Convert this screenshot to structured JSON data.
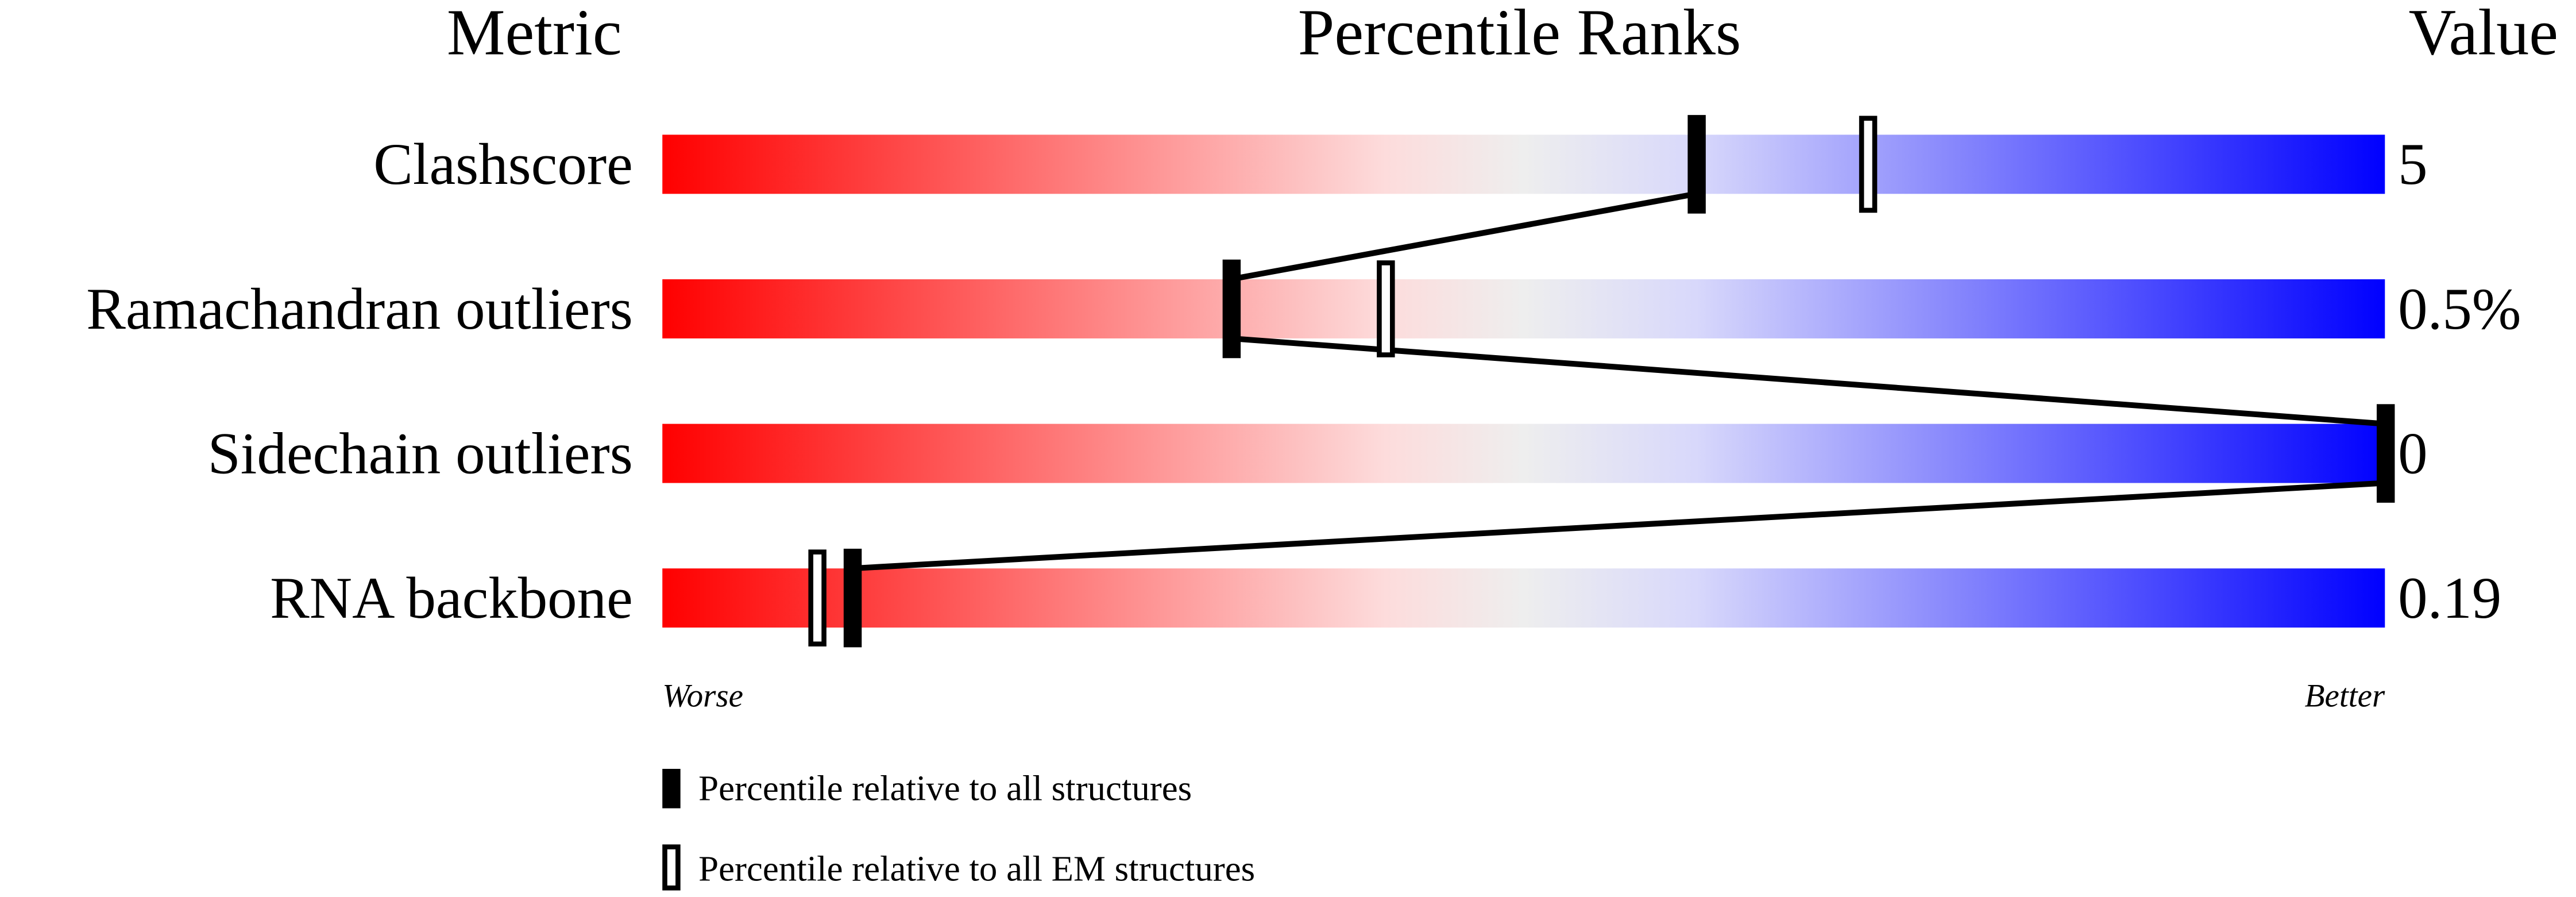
{
  "chart_data": {
    "type": "percentile-slider",
    "headers": {
      "metric": "Metric",
      "ranks": "Percentile Ranks",
      "value": "Value"
    },
    "xlim": [
      0,
      100
    ],
    "axis_labels": {
      "left": "Worse",
      "right": "Better"
    },
    "gradient_colors": [
      "#ff0000",
      "#fddcdc",
      "#eeeeee",
      "#d8d8fb",
      "#0000ff"
    ],
    "metrics": [
      {
        "name": "Clashscore",
        "value": "5",
        "percentile_all": 60,
        "percentile_em": 70
      },
      {
        "name": "Ramachandran outliers",
        "value": "0.5%",
        "percentile_all": 33,
        "percentile_em": 42
      },
      {
        "name": "Sidechain outliers",
        "value": "0",
        "percentile_all": 100,
        "percentile_em": null
      },
      {
        "name": "RNA backbone",
        "value": "0.19",
        "percentile_all": 11,
        "percentile_em": 9
      }
    ],
    "legend": [
      {
        "label": "Percentile relative to all structures",
        "marker": "filled"
      },
      {
        "label": "Percentile relative to all EM structures",
        "marker": "hollow"
      }
    ]
  }
}
